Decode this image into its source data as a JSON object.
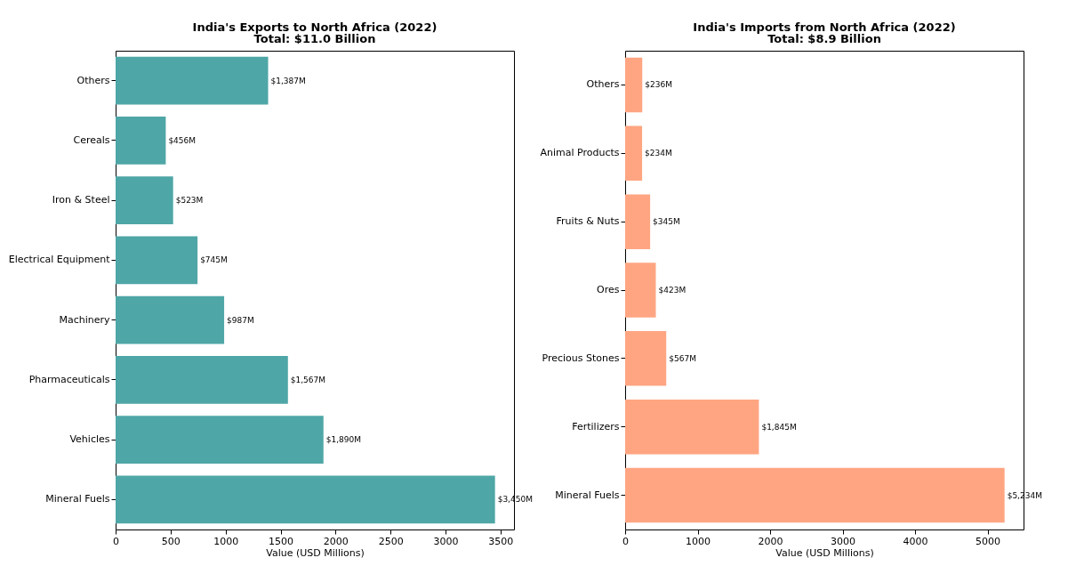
{
  "chart_data": [
    {
      "type": "bar",
      "orientation": "horizontal",
      "title": "India's Exports to North Africa (2022)",
      "subtitle": "Total: $11.0 Billion",
      "xlabel": "Value (USD Millions)",
      "categories": [
        "Others",
        "Cereals",
        "Iron & Steel",
        "Electrical Equipment",
        "Machinery",
        "Pharmaceuticals",
        "Vehicles",
        "Mineral Fuels"
      ],
      "values": [
        1387,
        456,
        523,
        745,
        987,
        1567,
        1890,
        3450
      ],
      "value_labels": [
        "$1,387M",
        "$456M",
        "$523M",
        "$745M",
        "$987M",
        "$1,567M",
        "$1,890M",
        "$3,450M"
      ],
      "color": "#4fa6a6",
      "xlim": [
        0,
        3622.5
      ],
      "xticks": [
        0,
        500,
        1000,
        1500,
        2000,
        2500,
        3000,
        3500
      ],
      "grid": false
    },
    {
      "type": "bar",
      "orientation": "horizontal",
      "title": "India's Imports from North Africa (2022)",
      "subtitle": "Total: $8.9 Billion",
      "xlabel": "Value (USD Millions)",
      "categories": [
        "Others",
        "Animal Products",
        "Fruits & Nuts",
        "Ores",
        "Precious Stones",
        "Fertilizers",
        "Mineral Fuels"
      ],
      "values": [
        236,
        234,
        345,
        423,
        567,
        1845,
        5234
      ],
      "value_labels": [
        "$236M",
        "$234M",
        "$345M",
        "$423M",
        "$567M",
        "$1,845M",
        "$5,234M"
      ],
      "color": "#ffa582",
      "xlim": [
        0,
        5495.7
      ],
      "xticks": [
        0,
        1000,
        2000,
        3000,
        4000,
        5000
      ],
      "grid": false
    }
  ]
}
